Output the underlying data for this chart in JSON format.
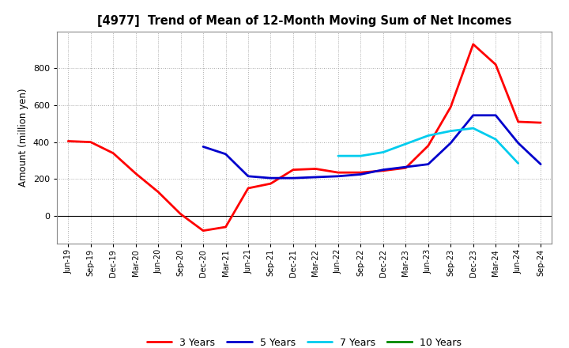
{
  "title": "[4977]  Trend of Mean of 12-Month Moving Sum of Net Incomes",
  "ylabel": "Amount (million yen)",
  "background_color": "#ffffff",
  "plot_bg_color": "#ffffff",
  "grid_color": "#aaaaaa",
  "x_labels": [
    "Jun-19",
    "Sep-19",
    "Dec-19",
    "Mar-20",
    "Jun-20",
    "Sep-20",
    "Dec-20",
    "Mar-21",
    "Jun-21",
    "Sep-21",
    "Dec-21",
    "Mar-22",
    "Jun-22",
    "Sep-22",
    "Dec-22",
    "Mar-23",
    "Jun-23",
    "Sep-23",
    "Dec-23",
    "Mar-24",
    "Jun-24",
    "Sep-24"
  ],
  "ylim": [
    -150,
    1000
  ],
  "yticks": [
    0,
    200,
    400,
    600,
    800
  ],
  "series": {
    "3 Years": {
      "color": "#ff0000",
      "linewidth": 2.0,
      "data_y": [
        405,
        400,
        340,
        230,
        130,
        10,
        -80,
        -60,
        150,
        175,
        250,
        255,
        235,
        235,
        245,
        260,
        380,
        590,
        930,
        820,
        510,
        505
      ]
    },
    "5 Years": {
      "color": "#0000cc",
      "linewidth": 2.0,
      "data_y": [
        null,
        null,
        null,
        null,
        null,
        null,
        375,
        335,
        215,
        205,
        205,
        210,
        215,
        225,
        250,
        265,
        280,
        395,
        545,
        545,
        395,
        280
      ]
    },
    "7 Years": {
      "color": "#00ccee",
      "linewidth": 2.0,
      "data_y": [
        null,
        null,
        null,
        null,
        null,
        null,
        null,
        null,
        null,
        null,
        null,
        null,
        325,
        325,
        345,
        390,
        435,
        460,
        475,
        415,
        285,
        null
      ]
    },
    "10 Years": {
      "color": "#008800",
      "linewidth": 2.0,
      "data_y": [
        null,
        null,
        null,
        null,
        null,
        null,
        null,
        null,
        null,
        null,
        null,
        null,
        null,
        null,
        null,
        null,
        null,
        null,
        null,
        null,
        null,
        null
      ]
    }
  },
  "legend_labels": [
    "3 Years",
    "5 Years",
    "7 Years",
    "10 Years"
  ]
}
